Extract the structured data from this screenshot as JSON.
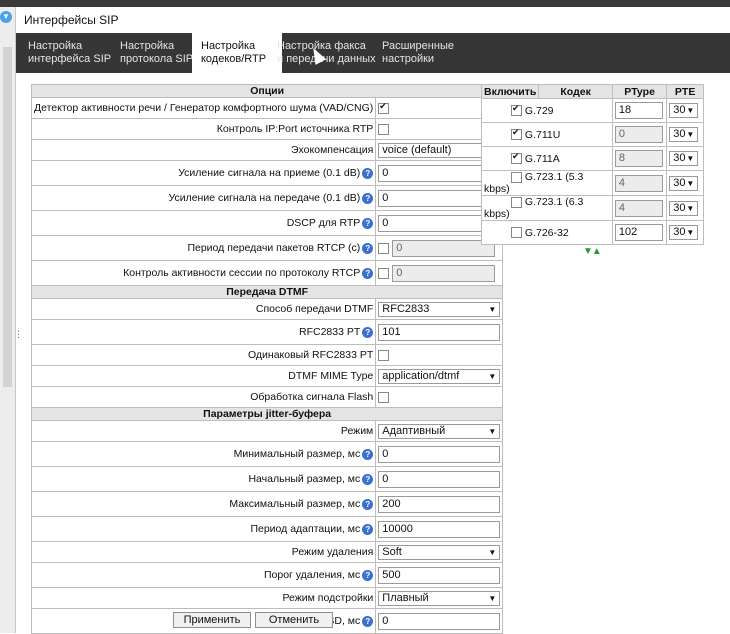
{
  "window": {
    "title": "Интерфейсы SIP"
  },
  "tabs": [
    {
      "line1": "Настройка",
      "line2": "интерфейса SIP"
    },
    {
      "line1": "Настройка",
      "line2": "протокола SIP"
    },
    {
      "line1": "Настройка",
      "line2": "кодеков/RTP"
    },
    {
      "line1": "Настройка факса",
      "line2": "и передачи данных"
    },
    {
      "line1": "Расширенные",
      "line2": "настройки"
    }
  ],
  "options": {
    "header": "Опции",
    "vad_label": "Детектор активности речи / Генератор комфортного шума (VAD/CNG)",
    "ipport_label": "Контроль IP:Port источника RTP",
    "echo_label": "Эхокомпенсация",
    "echo_value": "voice (default)",
    "rx_gain_label": "Усиление сигнала на приеме (0.1 dB)",
    "rx_gain_value": "0",
    "tx_gain_label": "Усиление сигнала на передаче (0.1 dB)",
    "tx_gain_value": "0",
    "dscp_label": "DSCP для RTP",
    "dscp_value": "0",
    "rtcp_period_label": "Период передачи пакетов RTCP (с)",
    "rtcp_period_value": "0",
    "rtcp_ctrl_label": "Контроль активности сессии по протоколу RTCP",
    "rtcp_ctrl_value": "0"
  },
  "dtmf": {
    "header": "Передача DTMF",
    "method_label": "Способ передачи DTMF",
    "method_value": "RFC2833",
    "pt_label": "RFC2833 PT",
    "pt_value": "101",
    "same_pt_label": "Одинаковый RFC2833 PT",
    "mime_label": "DTMF MIME Type",
    "mime_value": "application/dtmf",
    "flash_label": "Обработка сигнала Flash"
  },
  "jitter": {
    "header": "Параметры jitter-буфера",
    "mode_label": "Режим",
    "mode_value": "Адаптивный",
    "min_label": "Минимальный размер, мс",
    "min_value": "0",
    "init_label": "Начальный размер, мс",
    "init_value": "0",
    "max_label": "Максимальный размер, мс",
    "max_value": "200",
    "adapt_label": "Период адаптации, мс",
    "adapt_value": "10000",
    "del_label": "Режим удаления",
    "del_value": "Soft",
    "thr_label": "Порог удаления, мс",
    "thr_value": "500",
    "tune_label": "Режим подстройки",
    "tune_value": "Плавный",
    "vbd_label": "Размер для VBD, мс",
    "vbd_value": "0"
  },
  "codecs": {
    "col_enable": "Включить",
    "col_codec": "Кодек",
    "col_ptype": "PType",
    "col_pte": "PTE",
    "rows": [
      {
        "name": "G.729",
        "ptype": "18",
        "pte": "30"
      },
      {
        "name": "G.711U",
        "ptype": "0",
        "pte": "30"
      },
      {
        "name": "G.711A",
        "ptype": "8",
        "pte": "30"
      },
      {
        "name": "G.723.1 (5.3 kbps)",
        "ptype": "4",
        "pte": "30"
      },
      {
        "name": "G.723.1 (6.3 kbps)",
        "ptype": "4",
        "pte": "30"
      },
      {
        "name": "G.726-32",
        "ptype": "102",
        "pte": "30"
      }
    ]
  },
  "buttons": {
    "apply": "Применить",
    "cancel": "Отменить"
  }
}
